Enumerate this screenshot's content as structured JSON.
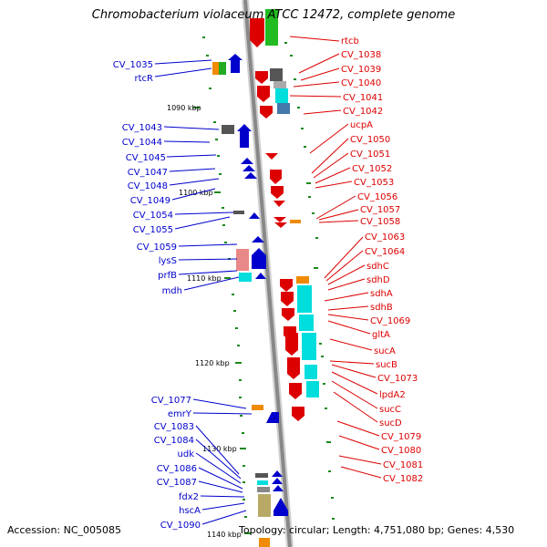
{
  "title": "Chromobacterium violaceum ATCC 12472, complete genome",
  "footer": {
    "accession": "Accession: NC_005085",
    "summary": "Topology: circular; Length: 4,751,080 bp; Genes: 4,530"
  },
  "ruler": [
    "1090 kbp",
    "1100 kbp",
    "1110 kbp",
    "1120 kbp",
    "1130 kbp",
    "1140 kbp"
  ],
  "colors": {
    "forward_label": "#0000cc",
    "reverse_label": "#dd0000",
    "backbone": "#888888",
    "tick": "#1a8a1a"
  },
  "left_labels": [
    "CV_1035",
    "rtcR",
    "CV_1043",
    "CV_1044",
    "CV_1045",
    "CV_1047",
    "CV_1048",
    "CV_1049",
    "CV_1054",
    "CV_1055",
    "CV_1059",
    "lysS",
    "prfB",
    "mdh",
    "CV_1077",
    "emrY",
    "CV_1083",
    "CV_1084",
    "udk",
    "CV_1086",
    "CV_1087",
    "fdx2",
    "hscA",
    "CV_1090"
  ],
  "right_labels": [
    "rtcb",
    "CV_1038",
    "CV_1039",
    "CV_1040",
    "CV_1041",
    "CV_1042",
    "ucpA",
    "CV_1050",
    "CV_1051",
    "CV_1052",
    "CV_1053",
    "CV_1056",
    "CV_1057",
    "CV_1058",
    "CV_1063",
    "CV_1064",
    "sdhC",
    "sdhD",
    "sdhA",
    "sdhB",
    "CV_1069",
    "gltA",
    "sucA",
    "sucB",
    "CV_1073",
    "lpdA2",
    "sucC",
    "sucD",
    "CV_1079",
    "CV_1080",
    "CV_1081",
    "CV_1082"
  ]
}
